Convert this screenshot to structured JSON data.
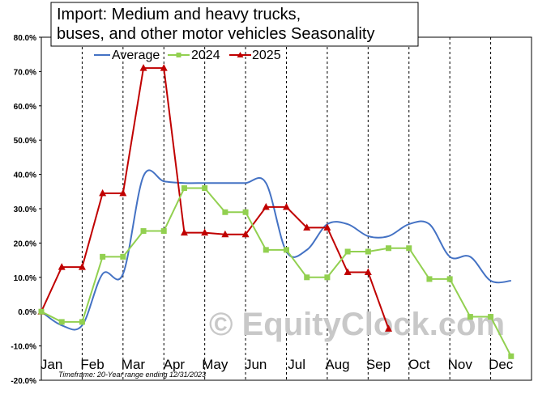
{
  "chart_data": {
    "type": "line",
    "title_lines": [
      "Import: Medium and heavy trucks,",
      "buses, and other motor vehicles Seasonality"
    ],
    "categories": [
      "Jan",
      "Feb",
      "Mar",
      "Apr",
      "May",
      "Jun",
      "Jul",
      "Aug",
      "Sep",
      "Oct",
      "Nov",
      "Dec"
    ],
    "ylim": [
      -20,
      80
    ],
    "yticks": [
      -20,
      -10,
      0,
      10,
      20,
      30,
      40,
      50,
      60,
      70,
      80
    ],
    "ytick_labels": [
      "-20.0%",
      "-10.0%",
      "0.0%",
      "10.0%",
      "20.0%",
      "30.0%",
      "40.0%",
      "50.0%",
      "60.0%",
      "70.0%",
      "80.0%"
    ],
    "grid": "vertical dashed month separators",
    "legend_position": "top",
    "series": [
      {
        "name": "Average",
        "color": "#4472c4",
        "marker": "none",
        "smooth": true,
        "x": [
          0,
          0.5,
          1,
          1.5,
          2,
          2.5,
          3,
          3.5,
          4,
          4.5,
          5,
          5.5,
          6,
          6.5,
          7,
          7.5,
          8,
          8.5,
          9,
          9.5,
          10,
          10.5,
          11,
          11.5
        ],
        "values": [
          0,
          -4,
          -4,
          11,
          11,
          39.5,
          38,
          37.5,
          37.5,
          37.5,
          37.5,
          37.5,
          17.5,
          18,
          25.5,
          25.5,
          22,
          22,
          25.5,
          25.5,
          16,
          16,
          9,
          9
        ]
      },
      {
        "name": "2024",
        "color": "#92d050",
        "marker": "square",
        "smooth": false,
        "x": [
          0,
          0.5,
          1,
          1.5,
          2,
          2.5,
          3,
          3.5,
          4,
          4.5,
          5,
          5.5,
          6,
          6.5,
          7,
          7.5,
          8,
          8.5,
          9,
          9.5,
          10,
          10.5,
          11,
          11.5
        ],
        "values": [
          0,
          -3,
          -3,
          16,
          16,
          23.5,
          23.5,
          36,
          36,
          29,
          29,
          18,
          18,
          10,
          10,
          17.5,
          17.5,
          18.5,
          18.5,
          9.5,
          9.5,
          -1.5,
          -1.5,
          -13
        ]
      },
      {
        "name": "2025",
        "color": "#c00000",
        "marker": "triangle",
        "smooth": false,
        "x": [
          0,
          0.5,
          1,
          1.5,
          2,
          2.5,
          3,
          3.5,
          4,
          4.5,
          5,
          5.5,
          6,
          6.5,
          7,
          7.5,
          8
        ],
        "values": [
          0,
          13,
          13,
          34.5,
          34.5,
          71,
          71,
          23,
          23,
          22.5,
          22.5,
          30.5,
          30.5,
          24.5,
          24.5,
          11.5,
          11.5
        ]
      }
    ],
    "extra_points_2025": {
      "x": [
        8.5
      ],
      "values": [
        -5
      ]
    },
    "timeframe_note": "Timeframe: 20-Year range ending 12/31/2023",
    "watermark": "© EquityClock.com"
  }
}
